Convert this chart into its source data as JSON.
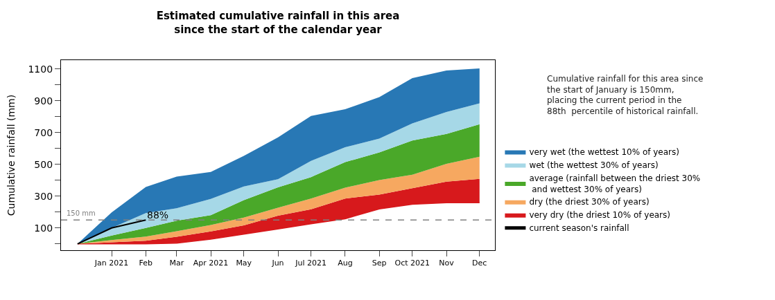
{
  "chart_data": {
    "type": "area",
    "stacked": true,
    "title": "Estimated cumulative rainfall in this area\nsince the start of the calendar year",
    "ylabel": "Cumulative rainfall (mm)",
    "x": [
      "2020-12",
      "2021-01",
      "2021-02",
      "2021-03",
      "2021-04",
      "2021-05",
      "2021-06",
      "2021-07",
      "2021-08",
      "2021-09",
      "2021-10",
      "2021-11",
      "2021-12"
    ],
    "series": [
      {
        "color": "#ffffff",
        "values": [
          0,
          0,
          0,
          5,
          29,
          61,
          94,
          126,
          158,
          220,
          249,
          259,
          259
        ]
      },
      {
        "name": "very dry (the driest 10% of years)",
        "color": "#d7191c",
        "values": [
          0,
          10,
          20,
          40,
          49,
          55,
          83,
          91,
          127,
          90,
          101,
          132,
          150
        ]
      },
      {
        "name": "dry (the driest 30% of years)",
        "color": "#f6a860",
        "values": [
          0,
          14,
          26,
          35,
          41,
          49,
          50,
          68,
          68,
          91,
          85,
          112,
          139
        ]
      },
      {
        "name": "average (rainfall between the driest 30%\n and wettest 30% of years)",
        "color": "#4aa829",
        "values": [
          0,
          28,
          54,
          66,
          62,
          110,
          128,
          135,
          161,
          174,
          215,
          188,
          204
        ]
      },
      {
        "name": "wet (the wettest 30% of years)",
        "color": "#a6d8e7",
        "values": [
          0,
          48,
          94,
          78,
          102,
          86,
          51,
          102,
          93,
          87,
          107,
          138,
          131
        ]
      },
      {
        "name": "very wet (the wettest 10% of years)",
        "color": "#2878b5",
        "values": [
          0,
          98,
          164,
          199,
          169,
          192,
          263,
          282,
          239,
          261,
          285,
          261,
          220
        ]
      },
      {
        "name": "current season's rainfall",
        "type": "line",
        "color": "#000000",
        "x": [
          "2020-12",
          "2021-01",
          "2021-02"
        ],
        "values": [
          0,
          100,
          150
        ]
      }
    ],
    "ylim": [
      -40,
      1155
    ],
    "yticks": [
      {
        "value": 0,
        "label": null
      },
      100,
      {
        "value": 200,
        "label": null
      },
      300,
      {
        "value": 400,
        "label": null
      },
      500,
      {
        "value": 600,
        "label": null
      },
      700,
      {
        "value": 800,
        "label": null
      },
      900,
      {
        "value": 1000,
        "label": null
      },
      1100
    ],
    "xlim": [
      "2020-11-16",
      "2021-12-15"
    ],
    "xticks": [
      {
        "value": "2021-01",
        "label": "Jan 2021"
      },
      {
        "value": "2021-02",
        "label": "Feb"
      },
      {
        "value": "2021-03",
        "label": "Mar"
      },
      {
        "value": "2021-04",
        "label": "Apr 2021"
      },
      {
        "value": "2021-05",
        "label": "May"
      },
      {
        "value": "2021-06",
        "label": "Jun"
      },
      {
        "value": "2021-07",
        "label": "Jul 2021"
      },
      {
        "value": "2021-08",
        "label": "Aug"
      },
      {
        "value": "2021-09",
        "label": "Sep"
      },
      {
        "value": "2021-10",
        "label": "Oct 2021"
      },
      {
        "value": "2021-11",
        "label": "Nov"
      },
      {
        "value": "2021-12",
        "label": "Dec"
      }
    ],
    "ref_lines": [
      {
        "axis": "y",
        "value": 150,
        "label": "150 mm",
        "color": "#808080",
        "line_style": "dashed"
      }
    ],
    "annotations": [
      {
        "text": "88%",
        "x": "2021-02",
        "y": 175
      },
      "Cumulative rainfall for this area since\nthe start of January is 150mm,\nplacing the current period in the\n88th  percentile of historical rainfall."
    ],
    "legend": "right"
  }
}
